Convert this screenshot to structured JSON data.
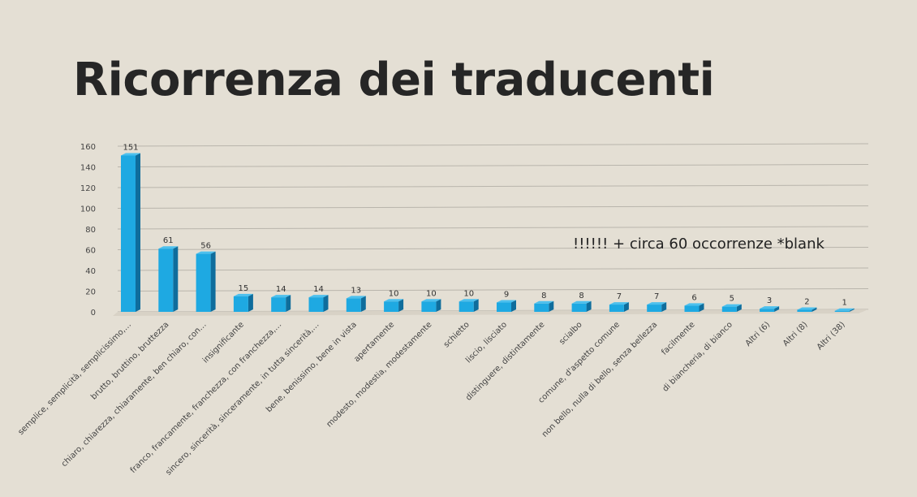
{
  "slide": {
    "title": "Ricorrenza dei traducenti",
    "note": "!!!!!!  + circa 60 occorrenze *blank"
  },
  "colors": {
    "background": "#e4dfd4",
    "bar_front": "#1ea9e2",
    "bar_side": "#0f6d9c",
    "bar_top": "#4cc0ee",
    "grid": "#b9b5ac"
  },
  "chart_data": {
    "type": "bar",
    "categories": [
      "semplice, semplicità, semplicissimo,…",
      "brutto, bruttino, bruttezza",
      "chiaro, chiarezza, chiaramente, ben chiaro, con…",
      "insignificante",
      "franco, francamente, franchezza, con franchezza,…",
      "sincero, sincerità, sinceramente, in tutta sincerità,…",
      "bene, benissimo, bene in vista",
      "apertamente",
      "modesto, modestia, modestamente",
      "schietto",
      "liscio, lisciato",
      "distinguere, distintamente",
      "scialbo",
      "comune, d'aspetto comune",
      "non bello, nulla di bello, senza bellezza",
      "facilmente",
      "di biancheria, di bianco",
      "Altri (6)",
      "Altri (8)",
      "Altri (38)"
    ],
    "values": [
      151,
      61,
      56,
      15,
      14,
      14,
      13,
      10,
      10,
      10,
      9,
      8,
      8,
      7,
      7,
      6,
      5,
      3,
      2,
      1
    ],
    "yticks": [
      "0",
      "20",
      "40",
      "60",
      "80",
      "100",
      "120",
      "140",
      "160"
    ],
    "ylim": [
      0,
      160
    ],
    "grid": true,
    "legend": "none",
    "style": "3d-column"
  }
}
